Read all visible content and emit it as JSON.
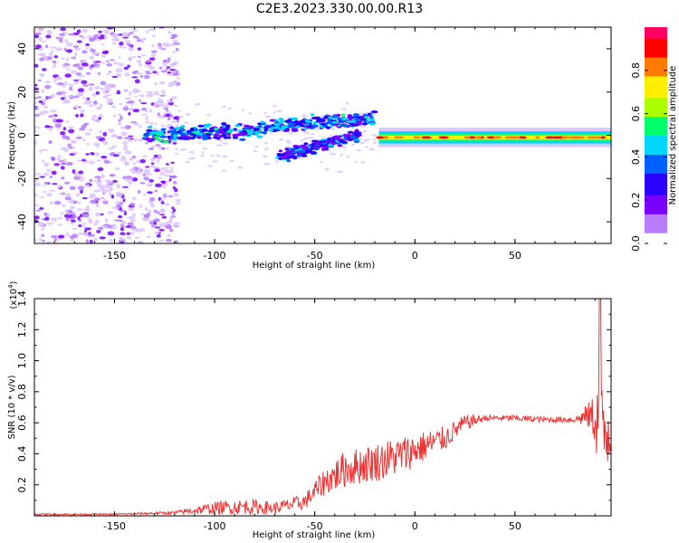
{
  "title": "C2E3.2023.330.00.00.R13",
  "chart_data": [
    {
      "type": "heatmap",
      "xlabel": "Height of straight line (km)",
      "ylabel": "Frequency (Hz)",
      "xlim": [
        -190,
        98
      ],
      "ylim": [
        -50,
        50
      ],
      "x_ticks": [
        -150,
        -100,
        -50,
        0,
        50
      ],
      "y_ticks": [
        -40,
        -20,
        0,
        20,
        40
      ],
      "colorbar": {
        "label": "Normalized spectral amplitude",
        "range": [
          0,
          1
        ],
        "ticks": [
          "0.0",
          "0.2",
          "0.4",
          "0.6",
          "0.8"
        ],
        "colormap": [
          "#ffffff",
          "#b77cff",
          "#7a00ff",
          "#2a00ff",
          "#0061ff",
          "#00d5ff",
          "#00ff6a",
          "#aaff00",
          "#ffee00",
          "#ff7a00",
          "#ff0000",
          "#ff0060"
        ]
      },
      "features": [
        {
          "name": "noise",
          "x": [
            -190,
            -118
          ],
          "freq_spread": 50,
          "amplitude": 0.15
        },
        {
          "name": "branch-upper",
          "x": [
            -135,
            -20
          ],
          "freq": [
            0,
            8
          ],
          "amplitude": 0.4
        },
        {
          "name": "branch-lower",
          "x": [
            -68,
            -28
          ],
          "freq": [
            -10,
            0
          ],
          "amplitude": 0.35
        },
        {
          "name": "main-line",
          "x": [
            -18,
            98
          ],
          "freq": [
            -1,
            -1
          ],
          "amplitude": 0.9
        }
      ]
    },
    {
      "type": "line",
      "xlabel": "Height of straight line (km)",
      "ylabel": "SNR (10 * v/v)",
      "y_multiplier": "(x10",
      "y_multiplier_exp": "4",
      "y_multiplier_close": ")",
      "xlim": [
        -190,
        98
      ],
      "ylim": [
        0,
        1.4
      ],
      "x_ticks": [
        -150,
        -100,
        -50,
        0,
        50
      ],
      "y_ticks": [
        "0.2",
        "0.4",
        "0.6",
        "0.8",
        "1.0",
        "1.2",
        "1.4"
      ],
      "series": [
        {
          "color": "#ee3333",
          "x": [
            -190,
            -150,
            -120,
            -100,
            -85,
            -70,
            -55,
            -45,
            -35,
            -25,
            -15,
            -5,
            5,
            15,
            25,
            35,
            50,
            65,
            80,
            88,
            92,
            94,
            96,
            98
          ],
          "y": [
            0.01,
            0.01,
            0.02,
            0.05,
            0.06,
            0.05,
            0.09,
            0.22,
            0.3,
            0.33,
            0.36,
            0.4,
            0.45,
            0.5,
            0.6,
            0.63,
            0.63,
            0.62,
            0.62,
            0.65,
            0.6,
            0.5,
            0.55,
            0.6
          ],
          "noise": [
            0.005,
            0.005,
            0.01,
            0.04,
            0.05,
            0.04,
            0.05,
            0.09,
            0.12,
            0.12,
            0.13,
            0.12,
            0.1,
            0.08,
            0.05,
            0.02,
            0.02,
            0.02,
            0.02,
            0.1,
            0.3,
            0.35,
            0.3,
            0.25
          ]
        }
      ]
    }
  ]
}
